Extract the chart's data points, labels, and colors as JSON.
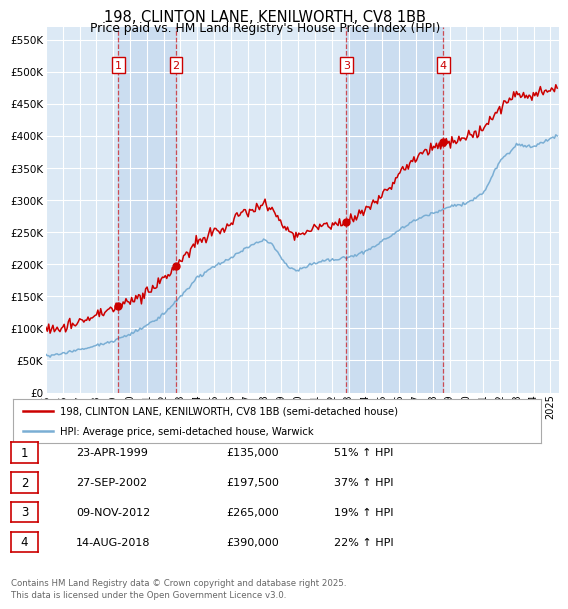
{
  "title1": "198, CLINTON LANE, KENILWORTH, CV8 1BB",
  "title2": "Price paid vs. HM Land Registry's House Price Index (HPI)",
  "ylabel_ticks": [
    "£0",
    "£50K",
    "£100K",
    "£150K",
    "£200K",
    "£250K",
    "£300K",
    "£350K",
    "£400K",
    "£450K",
    "£500K",
    "£550K"
  ],
  "ytick_values": [
    0,
    50000,
    100000,
    150000,
    200000,
    250000,
    300000,
    350000,
    400000,
    450000,
    500000,
    550000
  ],
  "ylim": [
    0,
    570000
  ],
  "xlim_start": 1995.0,
  "xlim_end": 2025.5,
  "background_color": "#ffffff",
  "plot_bg_color": "#dce9f5",
  "shade_color": "#c5d8ee",
  "grid_color": "#ffffff",
  "legend1_label": "198, CLINTON LANE, KENILWORTH, CV8 1BB (semi-detached house)",
  "legend2_label": "HPI: Average price, semi-detached house, Warwick",
  "red_color": "#cc0000",
  "blue_color": "#7aaed4",
  "sale_dates": [
    1999.31,
    2002.74,
    2012.86,
    2018.62
  ],
  "sale_prices": [
    135000,
    197500,
    265000,
    390000
  ],
  "sale_labels": [
    "1",
    "2",
    "3",
    "4"
  ],
  "sale_pcts": [
    "51% ↑ HPI",
    "37% ↑ HPI",
    "19% ↑ HPI",
    "22% ↑ HPI"
  ],
  "sale_date_strs": [
    "23-APR-1999",
    "27-SEP-2002",
    "09-NOV-2012",
    "14-AUG-2018"
  ],
  "sale_price_strs": [
    "£135,000",
    "£197,500",
    "£265,000",
    "£390,000"
  ],
  "footer_text": "Contains HM Land Registry data © Crown copyright and database right 2025.\nThis data is licensed under the Open Government Licence v3.0.",
  "xtick_years": [
    1995,
    1996,
    1997,
    1998,
    1999,
    2000,
    2001,
    2002,
    2003,
    2004,
    2005,
    2006,
    2007,
    2008,
    2009,
    2010,
    2011,
    2012,
    2013,
    2014,
    2015,
    2016,
    2017,
    2018,
    2019,
    2020,
    2021,
    2022,
    2023,
    2024,
    2025
  ]
}
